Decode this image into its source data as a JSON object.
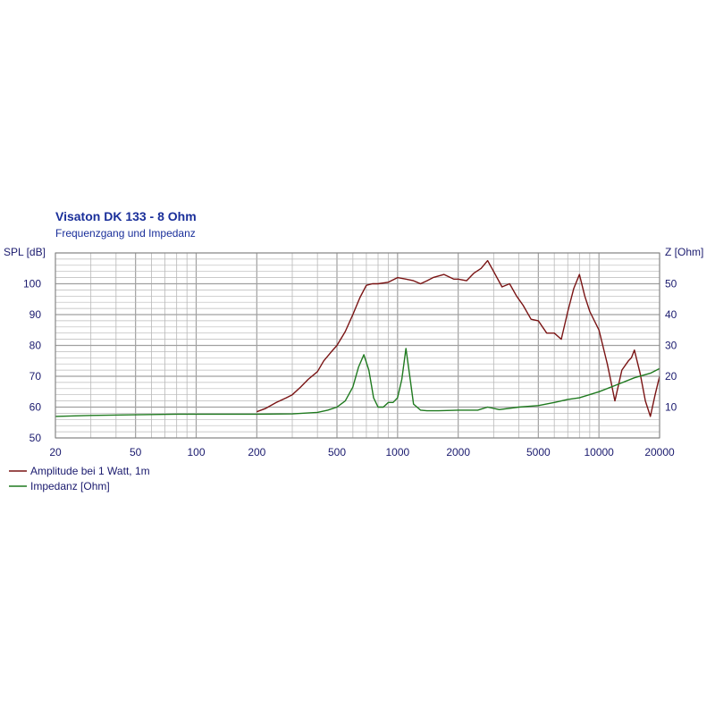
{
  "chart_data": {
    "type": "line",
    "title": "Visaton DK 133 - 8 Ohm",
    "subtitle": "Frequenzgang und Impedanz",
    "y_left_label": "SPL [dB]",
    "y_right_label": "Z [Ohm]",
    "x_scale": "log",
    "xlim": [
      20,
      20000
    ],
    "ylim_left": [
      50,
      110
    ],
    "ylim_right": [
      0,
      60
    ],
    "grid": true,
    "legend_position": "bottom-left",
    "x_ticks": [
      "20",
      "50",
      "100",
      "200",
      "500",
      "1000",
      "2000",
      "5000",
      "10000",
      "20000"
    ],
    "y_left_ticks": [
      "50",
      "60",
      "70",
      "80",
      "90",
      "100"
    ],
    "y_right_ticks": [
      "10",
      "20",
      "30",
      "40",
      "50"
    ],
    "colors": {
      "amplitude": "#7a1414",
      "impedance": "#1f7a1f",
      "grid": "#b8b8b8",
      "text": "#1a1a6e"
    },
    "series": [
      {
        "name": "Amplitude bei 1 Watt, 1m",
        "axis": "left",
        "x": [
          200,
          220,
          250,
          280,
          300,
          330,
          360,
          400,
          430,
          470,
          500,
          550,
          600,
          650,
          700,
          750,
          800,
          900,
          1000,
          1100,
          1200,
          1300,
          1400,
          1500,
          1700,
          1900,
          2000,
          2200,
          2400,
          2600,
          2800,
          3000,
          3300,
          3600,
          3900,
          4200,
          4600,
          5000,
          5500,
          6000,
          6500,
          7000,
          7500,
          8000,
          8500,
          9000,
          10000,
          11000,
          11500,
          12000,
          13000,
          14000,
          14500,
          15000,
          16000,
          17000,
          18000,
          19000,
          20000
        ],
        "values": [
          58.5,
          59.5,
          61.5,
          63,
          64,
          66.5,
          69,
          71.5,
          75,
          78,
          80,
          84.5,
          90,
          95.5,
          99.5,
          100,
          100,
          100.5,
          102,
          101.5,
          101,
          100,
          101,
          102,
          103,
          101.5,
          101.5,
          101,
          103.5,
          105,
          107.5,
          104,
          99,
          100,
          96,
          93,
          88.5,
          88,
          84,
          84,
          82,
          91,
          98.5,
          103,
          96,
          91,
          85,
          74,
          68,
          62,
          72,
          75,
          76,
          78.5,
          71,
          62,
          57,
          64,
          70
        ]
      },
      {
        "name": "Impedanz [Ohm]",
        "axis": "right",
        "x": [
          20,
          30,
          50,
          80,
          100,
          150,
          200,
          300,
          400,
          450,
          500,
          550,
          600,
          640,
          680,
          720,
          760,
          800,
          850,
          900,
          950,
          1000,
          1050,
          1100,
          1150,
          1200,
          1300,
          1400,
          1600,
          2000,
          2500,
          2800,
          3200,
          4000,
          5000,
          6000,
          7000,
          8000,
          10000,
          12000,
          15000,
          18000,
          20000
        ],
        "values": [
          7,
          7.3,
          7.5,
          7.7,
          7.7,
          7.7,
          7.7,
          7.8,
          8.3,
          9,
          10,
          12,
          16.5,
          23,
          27,
          22,
          13,
          10,
          10,
          11.5,
          11.5,
          13,
          19,
          29,
          20,
          11,
          9,
          8.8,
          8.8,
          9,
          9,
          10,
          9.2,
          10,
          10.5,
          11.5,
          12.5,
          13,
          15,
          17,
          19.5,
          21,
          22.5
        ]
      }
    ]
  }
}
